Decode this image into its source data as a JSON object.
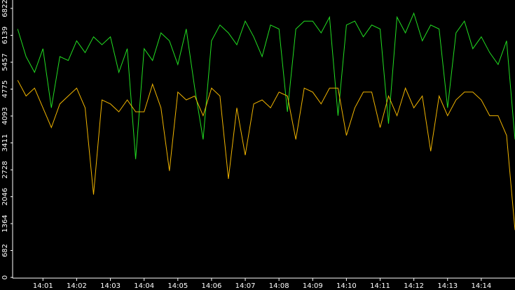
{
  "chart_data": {
    "type": "line",
    "x": [
      840.25,
      840.5,
      840.75,
      841,
      841.25,
      841.5,
      841.75,
      842,
      842.25,
      842.5,
      842.75,
      843,
      843.25,
      843.5,
      843.75,
      844,
      844.25,
      844.5,
      844.75,
      845,
      845.25,
      845.5,
      845.75,
      846,
      846.25,
      846.5,
      846.75,
      847,
      847.25,
      847.5,
      847.75,
      848,
      848.25,
      848.5,
      848.75,
      849,
      849.25,
      849.5,
      849.75,
      850,
      850.25,
      850.5,
      850.75,
      851,
      851.25,
      851.5,
      851.75,
      852,
      852.25,
      852.5,
      852.75,
      853,
      853.25,
      853.5,
      853.75,
      854,
      854.25,
      854.5,
      854.75,
      855
    ],
    "series": [
      {
        "color": "#22dd22",
        "values": [
          6300,
          5600,
          5200,
          5800,
          4300,
          5600,
          5500,
          6000,
          5700,
          6100,
          5900,
          6100,
          5200,
          5800,
          3000,
          5800,
          5500,
          6200,
          6000,
          5400,
          6300,
          4800,
          3500,
          6000,
          6400,
          6200,
          5900,
          6500,
          6100,
          5600,
          6400,
          6300,
          4200,
          6300,
          6500,
          6500,
          6200,
          6600,
          4100,
          6400,
          6500,
          6100,
          6400,
          6300,
          3900,
          6600,
          6200,
          6700,
          6000,
          6400,
          6300,
          4300,
          6200,
          6500,
          5800,
          6100,
          5700,
          5400,
          6000,
          3500
        ]
      },
      {
        "color": "#f0b400",
        "values": [
          5000,
          4600,
          4800,
          4300,
          3800,
          4400,
          4600,
          4800,
          4300,
          2100,
          4500,
          4400,
          4200,
          4500,
          4200,
          4200,
          4900,
          4300,
          2700,
          4700,
          4500,
          4600,
          4100,
          4800,
          4600,
          2500,
          4300,
          3100,
          4400,
          4500,
          4300,
          4700,
          4600,
          3500,
          4800,
          4700,
          4400,
          4800,
          4800,
          3600,
          4300,
          4700,
          4700,
          3800,
          4600,
          4100,
          4800,
          4300,
          4600,
          3200,
          4600,
          4100,
          4500,
          4700,
          4700,
          4500,
          4100,
          4100,
          3600,
          1200
        ]
      }
    ],
    "xlim": [
      840.1,
      855
    ],
    "ylim": [
      0,
      6822
    ],
    "yticks": [
      0,
      682,
      1364,
      2046,
      2728,
      3411,
      4093,
      4775,
      5457,
      6139,
      6822
    ],
    "xticks": [
      {
        "value": 841,
        "label": "14:01"
      },
      {
        "value": 842,
        "label": "14:02"
      },
      {
        "value": 843,
        "label": "14:03"
      },
      {
        "value": 844,
        "label": "14:04"
      },
      {
        "value": 845,
        "label": "14:05"
      },
      {
        "value": 846,
        "label": "14:06"
      },
      {
        "value": 847,
        "label": "14:07"
      },
      {
        "value": 848,
        "label": "14:08"
      },
      {
        "value": 849,
        "label": "14:09"
      },
      {
        "value": 850,
        "label": "14:10"
      },
      {
        "value": 851,
        "label": "14:11"
      },
      {
        "value": 852,
        "label": "14:12"
      },
      {
        "value": 853,
        "label": "14:13"
      },
      {
        "value": 854,
        "label": "14:14"
      }
    ]
  }
}
